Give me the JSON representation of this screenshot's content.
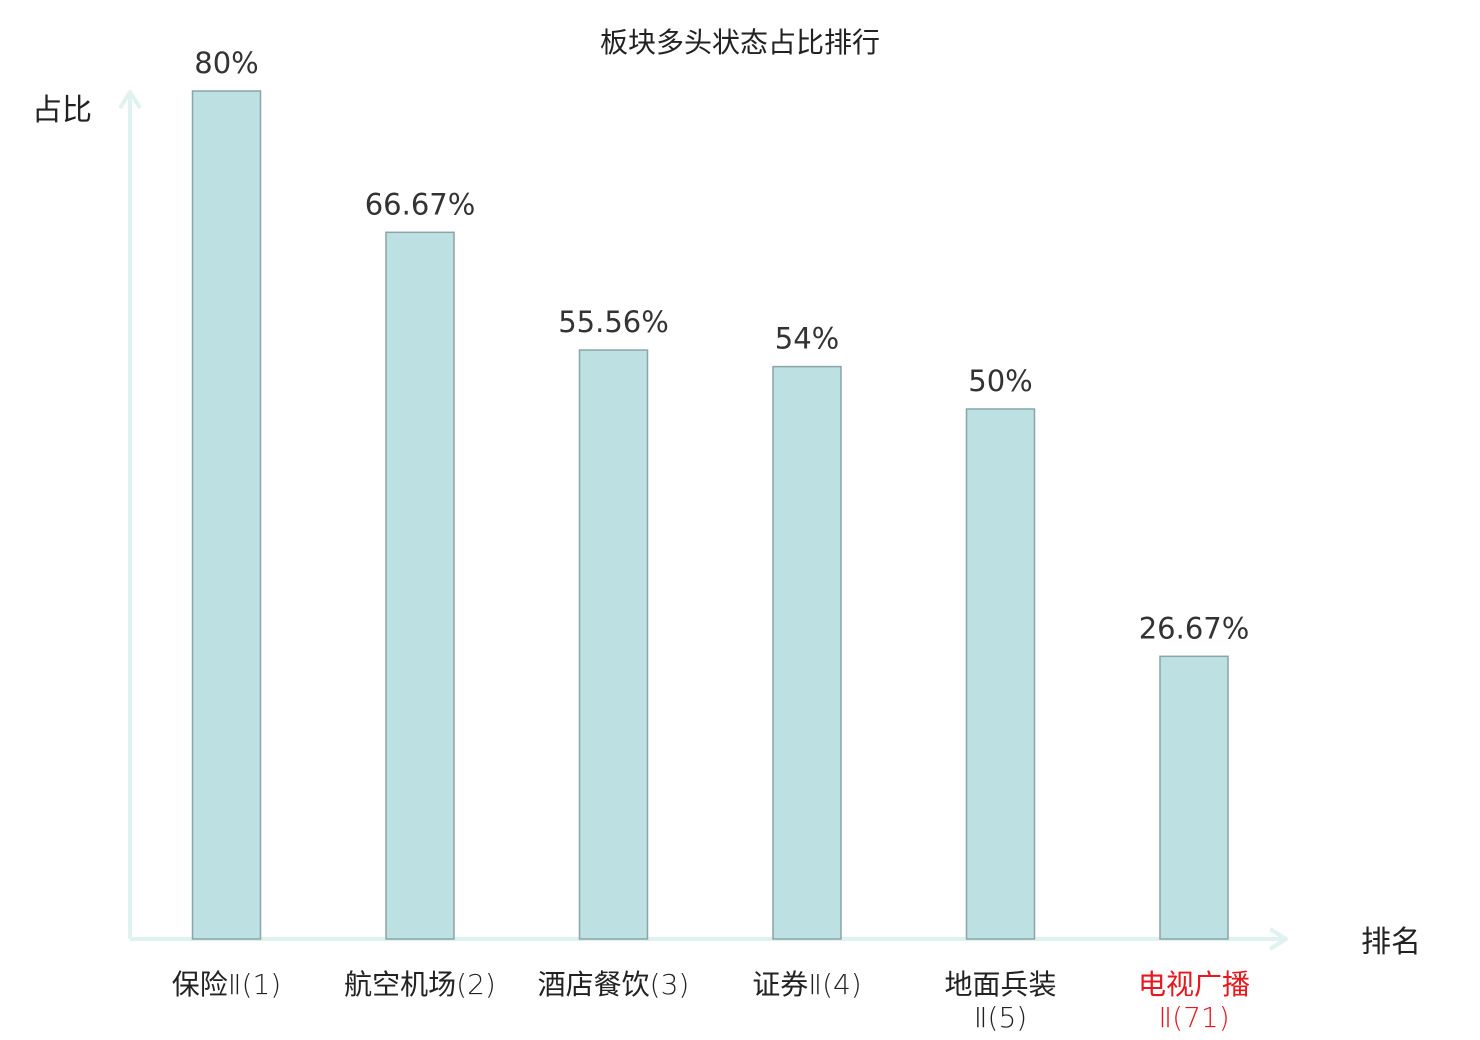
{
  "chart_data": {
    "type": "bar",
    "title": "板块多头状态占比排行",
    "ylabel": "占比",
    "xlabel": "排名",
    "ylim": [
      0,
      100
    ],
    "grid": false,
    "categories": [
      {
        "name": "保险",
        "suffix": "Ⅱ(1)",
        "highlight": false
      },
      {
        "name": "航空机场",
        "suffix": "(2)",
        "highlight": false
      },
      {
        "name": "酒店餐饮",
        "suffix": "(3)",
        "highlight": false
      },
      {
        "name": "证券",
        "suffix": "Ⅱ(4)",
        "highlight": false
      },
      {
        "name": "地面兵装",
        "suffix": "Ⅱ(5)",
        "highlight": false,
        "wrap": true
      },
      {
        "name": "电视广播",
        "suffix": "Ⅱ(71)",
        "highlight": true,
        "wrap": true
      }
    ],
    "values": [
      80,
      66.67,
      55.56,
      54,
      50,
      26.67
    ],
    "value_labels": [
      "80%",
      "66.67%",
      "55.56%",
      "54%",
      "50%",
      "26.67%"
    ],
    "colors": {
      "bar_fill": "#bde0e2",
      "bar_stroke": "#8aa4a8",
      "axis": "#e0f2ef",
      "text": "#222222",
      "highlight": "#e8171d"
    }
  }
}
